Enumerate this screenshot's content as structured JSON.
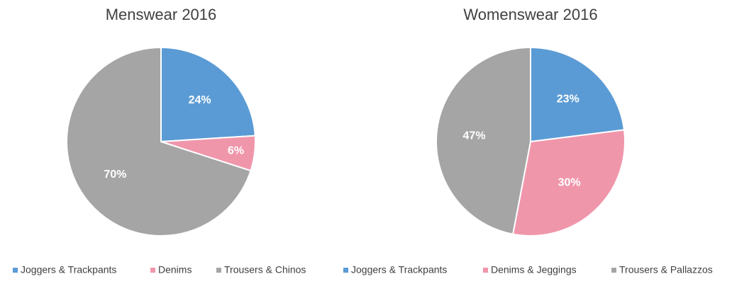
{
  "chart_data": [
    {
      "type": "pie",
      "title": "Menswear 2016",
      "categories": [
        "Joggers & Trackpants",
        "Denims",
        "Trousers & Chinos"
      ],
      "values": [
        24,
        6,
        70
      ],
      "value_labels": [
        "24%",
        "6%",
        "70%"
      ],
      "colors": [
        "#5b9bd5",
        "#f096ab",
        "#a5a5a5"
      ]
    },
    {
      "type": "pie",
      "title": "Womenswear 2016",
      "categories": [
        "Joggers & Trackpants",
        "Denims & Jeggings",
        "Trousers & Pallazzos"
      ],
      "values": [
        23,
        30,
        47
      ],
      "value_labels": [
        "23%",
        "30%",
        "47%"
      ],
      "colors": [
        "#5b9bd5",
        "#f096ab",
        "#a5a5a5"
      ]
    }
  ]
}
